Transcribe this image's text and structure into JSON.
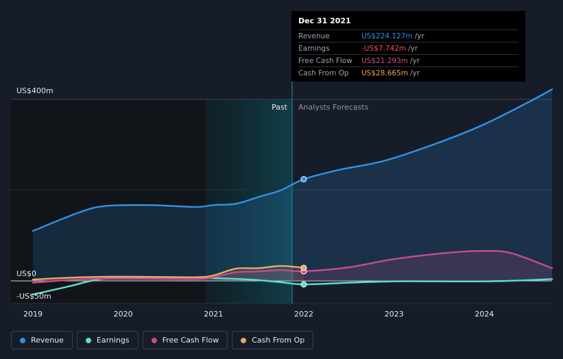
{
  "chart_data": {
    "type": "line",
    "title": "",
    "ylabel_top": "US$400m",
    "ylabel_zero": "US$0",
    "ylabel_bottom": "-US$50m",
    "ylim": [
      -50,
      400
    ],
    "x_ticks": [
      "2019",
      "2020",
      "2021",
      "2022",
      "2023",
      "2024"
    ],
    "past_label": "Past",
    "forecast_label": "Analysts Forecasts",
    "series": [
      {
        "name": "Revenue",
        "color": "#2f91e2",
        "points": [
          [
            2019.0,
            110
          ],
          [
            2019.5,
            150
          ],
          [
            2019.8,
            165
          ],
          [
            2020.3,
            167
          ],
          [
            2020.8,
            163
          ],
          [
            2021.0,
            167
          ],
          [
            2021.25,
            170
          ],
          [
            2021.5,
            185
          ],
          [
            2021.75,
            200
          ],
          [
            2022.0,
            224.1
          ],
          [
            2022.4,
            245
          ],
          [
            2022.9,
            265
          ],
          [
            2023.5,
            305
          ],
          [
            2024.0,
            345
          ],
          [
            2024.5,
            395
          ],
          [
            2024.75,
            422
          ]
        ]
      },
      {
        "name": "Earnings",
        "color": "#58e1c9",
        "points": [
          [
            2019.0,
            -30
          ],
          [
            2019.4,
            -12
          ],
          [
            2019.75,
            4
          ],
          [
            2020.2,
            8
          ],
          [
            2020.7,
            8
          ],
          [
            2021.0,
            6
          ],
          [
            2021.4,
            3
          ],
          [
            2021.75,
            -3
          ],
          [
            2022.0,
            -7.742
          ],
          [
            2022.5,
            -4
          ],
          [
            2023.0,
            -1
          ],
          [
            2023.5,
            -1
          ],
          [
            2024.0,
            -1
          ],
          [
            2024.4,
            1
          ],
          [
            2024.75,
            4
          ]
        ]
      },
      {
        "name": "Free Cash Flow",
        "color": "#c34c8a",
        "points": [
          [
            2019.0,
            -4
          ],
          [
            2019.4,
            2
          ],
          [
            2019.8,
            5
          ],
          [
            2020.2,
            5
          ],
          [
            2020.8,
            4
          ],
          [
            2021.0,
            8
          ],
          [
            2021.25,
            19
          ],
          [
            2021.5,
            21
          ],
          [
            2021.75,
            24
          ],
          [
            2022.0,
            21.293
          ],
          [
            2022.5,
            30
          ],
          [
            2023.0,
            48
          ],
          [
            2023.6,
            62
          ],
          [
            2024.0,
            66
          ],
          [
            2024.3,
            61
          ],
          [
            2024.75,
            28
          ]
        ]
      },
      {
        "name": "Cash From Op",
        "color": "#e8a75f",
        "points": [
          [
            2019.0,
            3
          ],
          [
            2019.4,
            7
          ],
          [
            2019.8,
            9
          ],
          [
            2020.2,
            9
          ],
          [
            2020.8,
            8
          ],
          [
            2021.0,
            12
          ],
          [
            2021.25,
            27
          ],
          [
            2021.5,
            28
          ],
          [
            2021.75,
            33
          ],
          [
            2022.0,
            28.665
          ]
        ]
      }
    ]
  },
  "tooltip": {
    "date": "Dec 31 2021",
    "rows": [
      {
        "label": "Revenue",
        "value": "US$224.127m",
        "unit": "/yr",
        "color": "#2f91e2"
      },
      {
        "label": "Earnings",
        "value": "-US$7.742m",
        "unit": "/yr",
        "color": "#ff4b4b"
      },
      {
        "label": "Free Cash Flow",
        "value": "US$21.293m",
        "unit": "/yr",
        "color": "#c34c8a"
      },
      {
        "label": "Cash From Op",
        "value": "US$28.665m",
        "unit": "/yr",
        "color": "#e8a75f"
      }
    ]
  },
  "legend": [
    {
      "label": "Revenue",
      "color": "#2f91e2"
    },
    {
      "label": "Earnings",
      "color": "#58e1c9"
    },
    {
      "label": "Free Cash Flow",
      "color": "#c34c8a"
    },
    {
      "label": "Cash From Op",
      "color": "#e8a75f"
    }
  ]
}
